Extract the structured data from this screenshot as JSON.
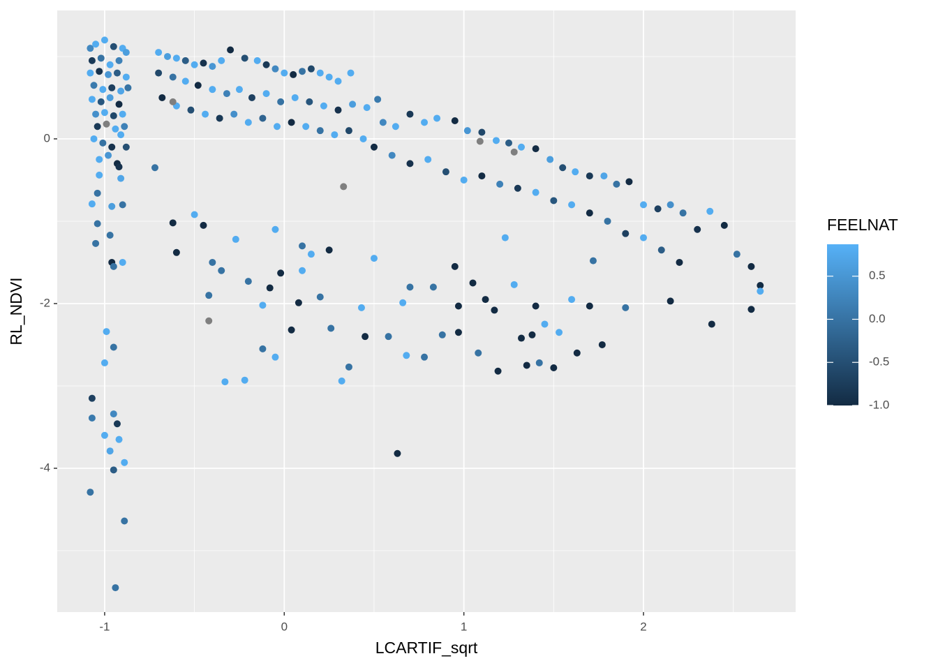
{
  "chart_data": {
    "type": "scatter",
    "x_label": "LCARTIF_sqrt",
    "y_label": "RL_NDVI",
    "xlim": [
      -1.264,
      2.847
    ],
    "ylim": [
      -5.746,
      1.559
    ],
    "xticks": [
      -1,
      0,
      1,
      2
    ],
    "yticks": [
      -4,
      -2,
      0
    ],
    "grid": true,
    "background": "#ebebeb",
    "na_color": "#7f7f7f",
    "colorbar": {
      "title": "FEELNAT",
      "lim": [
        -1,
        0.87
      ],
      "low": "#132b43",
      "high": "#56b1f7",
      "ticks": [
        {
          "value": -1,
          "label": "-1.0"
        },
        {
          "value": -0.5,
          "label": "-0.5"
        },
        {
          "value": 0,
          "label": "0.0"
        },
        {
          "value": 0.5,
          "label": "0.5"
        }
      ]
    },
    "x": [
      -1.08,
      -1.05,
      -1.0,
      -0.95,
      -0.9,
      -0.88,
      -1.07,
      -1.02,
      -0.97,
      -0.92,
      -1.08,
      -1.03,
      -0.98,
      -0.93,
      -0.88,
      -1.06,
      -1.01,
      -0.96,
      -0.91,
      -0.87,
      -1.07,
      -1.02,
      -0.97,
      -0.92,
      -1.05,
      -1.0,
      -0.95,
      -0.9,
      -1.04,
      -0.99,
      -0.94,
      -0.89,
      -1.06,
      -1.01,
      -0.96,
      -0.91,
      -0.88,
      -1.03,
      -0.98,
      -0.93,
      -1.07,
      -1.07,
      -1.08,
      -0.94,
      -0.89,
      -0.89,
      -0.95,
      -0.97,
      -1.0,
      -0.92,
      -0.93,
      -0.95,
      -0.99,
      -1.0,
      -0.95,
      -0.96,
      -0.95,
      -0.9,
      -1.05,
      -0.97,
      -1.04,
      -0.96,
      -0.9,
      -1.07,
      -1.04,
      -1.03,
      -0.91,
      -0.92,
      -0.7,
      -0.65,
      -0.6,
      -0.55,
      -0.5,
      -0.45,
      -0.4,
      -0.35,
      -0.3,
      -0.22,
      -0.15,
      -0.1,
      -0.05,
      0.0,
      0.05,
      0.1,
      0.15,
      0.2,
      0.25,
      0.3,
      0.37,
      -0.7,
      -0.62,
      -0.55,
      -0.48,
      -0.4,
      -0.32,
      -0.25,
      -0.18,
      -0.1,
      -0.02,
      0.06,
      0.14,
      0.22,
      0.3,
      0.38,
      0.46,
      0.52,
      -0.68,
      -0.6,
      -0.52,
      -0.44,
      -0.36,
      -0.28,
      -0.2,
      -0.12,
      -0.04,
      0.04,
      0.12,
      0.2,
      0.28,
      0.36,
      0.44,
      0.55,
      0.62,
      0.7,
      0.78,
      0.85,
      0.95,
      1.02,
      1.1,
      1.18,
      1.25,
      1.32,
      1.4,
      1.48,
      1.55,
      1.62,
      1.7,
      1.78,
      1.85,
      1.92,
      2.0,
      2.08,
      2.15,
      2.22,
      2.3,
      2.37,
      2.45,
      2.52,
      2.6,
      2.65,
      2.65,
      2.6,
      2.38,
      0.5,
      0.6,
      0.7,
      0.8,
      0.9,
      1.0,
      1.1,
      1.2,
      1.3,
      1.4,
      1.5,
      1.6,
      1.7,
      1.8,
      1.9,
      2.0,
      2.1,
      2.2,
      1.09,
      -0.62,
      0.33,
      -0.42,
      1.28,
      -0.72,
      -0.6,
      -0.62,
      -0.5,
      -0.45,
      -0.4,
      -0.35,
      -0.42,
      -0.33,
      -0.22,
      -0.27,
      -0.2,
      -0.12,
      -0.12,
      -0.05,
      -0.08,
      -0.02,
      0.08,
      0.04,
      0.1,
      0.15,
      0.2,
      0.26,
      0.32,
      0.36,
      0.43,
      0.45,
      0.5,
      0.58,
      0.63,
      0.66,
      0.68,
      0.7,
      0.78,
      0.83,
      0.88,
      0.95,
      0.97,
      0.97,
      1.05,
      1.08,
      1.12,
      1.17,
      1.19,
      1.23,
      1.28,
      1.32,
      1.35,
      1.4,
      1.42,
      1.45,
      1.5,
      1.53,
      1.6,
      1.63,
      1.7,
      1.77,
      1.9,
      1.72,
      2.15,
      1.38,
      -0.05,
      0.1,
      0.25
    ],
    "y": [
      1.1,
      1.15,
      1.2,
      1.12,
      1.1,
      1.05,
      0.95,
      0.98,
      0.9,
      0.95,
      0.8,
      0.82,
      0.78,
      0.8,
      0.75,
      0.65,
      0.6,
      0.62,
      0.58,
      0.62,
      0.48,
      0.45,
      0.5,
      0.42,
      0.3,
      0.32,
      0.28,
      0.3,
      0.15,
      0.18,
      0.12,
      0.15,
      0.0,
      -0.05,
      -0.1,
      0.05,
      -0.1,
      -0.25,
      -0.2,
      -0.3,
      -3.15,
      -3.39,
      -4.29,
      -5.45,
      -4.64,
      -3.93,
      -4.02,
      -3.79,
      -3.6,
      -3.65,
      -3.46,
      -3.34,
      -2.34,
      -2.72,
      -2.53,
      -1.5,
      -1.55,
      -1.5,
      -1.27,
      -1.17,
      -1.03,
      -0.82,
      -0.8,
      -0.79,
      -0.66,
      -0.44,
      -0.48,
      -0.34,
      1.05,
      1.0,
      0.98,
      0.95,
      0.9,
      0.92,
      0.88,
      0.95,
      1.08,
      0.98,
      0.95,
      0.9,
      0.85,
      0.8,
      0.78,
      0.82,
      0.85,
      0.8,
      0.75,
      0.7,
      0.8,
      0.8,
      0.75,
      0.7,
      0.65,
      0.6,
      0.55,
      0.6,
      0.5,
      0.55,
      0.45,
      0.5,
      0.45,
      0.4,
      0.35,
      0.42,
      0.38,
      0.48,
      0.5,
      0.4,
      0.35,
      0.3,
      0.25,
      0.3,
      0.2,
      0.25,
      0.15,
      0.2,
      0.15,
      0.1,
      0.05,
      0.1,
      0.0,
      0.2,
      0.15,
      0.3,
      0.2,
      0.25,
      0.22,
      0.1,
      0.08,
      -0.02,
      -0.05,
      -0.1,
      -0.12,
      -0.25,
      -0.35,
      -0.4,
      -0.45,
      -0.45,
      -0.55,
      -0.52,
      -0.8,
      -0.85,
      -0.8,
      -0.9,
      -1.1,
      -0.88,
      -1.05,
      -1.4,
      -1.55,
      -1.78,
      -1.85,
      -2.07,
      -2.25,
      -0.1,
      -0.2,
      -0.3,
      -0.25,
      -0.4,
      -0.5,
      -0.45,
      -0.55,
      -0.6,
      -0.65,
      -0.75,
      -0.8,
      -0.9,
      -1.0,
      -1.15,
      -1.2,
      -1.35,
      -1.5,
      -0.03,
      0.45,
      -0.58,
      -2.21,
      -0.16,
      -0.35,
      -1.38,
      -1.02,
      -0.92,
      -1.05,
      -1.5,
      -1.6,
      -1.9,
      -2.95,
      -2.93,
      -1.22,
      -1.73,
      -2.02,
      -2.55,
      -2.65,
      -1.81,
      -1.63,
      -1.99,
      -2.32,
      -1.6,
      -1.4,
      -1.92,
      -2.3,
      -2.94,
      -2.77,
      -2.05,
      -2.4,
      -1.45,
      -2.4,
      -3.82,
      -1.99,
      -2.63,
      -1.8,
      -2.65,
      -1.8,
      -2.38,
      -1.55,
      -2.03,
      -2.35,
      -1.75,
      -2.6,
      -1.95,
      -2.08,
      -2.82,
      -1.2,
      -1.77,
      -2.42,
      -2.75,
      -2.03,
      -2.72,
      -2.25,
      -2.78,
      -2.35,
      -1.95,
      -2.6,
      -2.03,
      -2.5,
      -2.05,
      -1.48,
      -1.97,
      -2.38,
      -1.1,
      -1.3,
      -1.35
    ],
    "feelnat": [
      0.3,
      0.8,
      0.8,
      -0.5,
      0.8,
      0.6,
      -0.8,
      0.0,
      0.8,
      0.2,
      0.8,
      -0.9,
      0.5,
      -0.3,
      0.8,
      0.1,
      0.8,
      -0.7,
      0.7,
      0.0,
      0.8,
      -0.4,
      0.6,
      -1.0,
      0.4,
      0.8,
      -0.6,
      0.8,
      -0.8,
      null,
      0.8,
      0.2,
      0.8,
      0.0,
      -0.9,
      0.8,
      -0.5,
      0.8,
      0.5,
      -1.0,
      -0.7,
      0.1,
      0.0,
      0.0,
      0.0,
      0.8,
      -0.3,
      0.7,
      0.8,
      0.8,
      -0.8,
      0.3,
      0.8,
      0.8,
      0.0,
      -1.0,
      0.0,
      0.8,
      0.0,
      0.0,
      0.0,
      0.6,
      0.0,
      0.8,
      0.0,
      0.8,
      0.7,
      -0.9,
      0.8,
      0.6,
      0.8,
      -0.3,
      0.8,
      -0.9,
      0.5,
      0.8,
      -1.0,
      -0.5,
      0.8,
      -0.8,
      0.3,
      0.8,
      -1.0,
      0.0,
      -0.6,
      0.8,
      0.8,
      0.8,
      0.8,
      -0.6,
      0.0,
      0.8,
      -1.0,
      0.8,
      0.2,
      0.8,
      -0.7,
      0.8,
      0.0,
      0.8,
      -0.4,
      0.8,
      -0.9,
      0.6,
      0.8,
      0.1,
      -1.0,
      0.8,
      -0.5,
      0.8,
      -0.8,
      0.4,
      0.8,
      -0.2,
      0.8,
      -1.0,
      0.8,
      0.0,
      0.8,
      -0.6,
      0.8,
      0.3,
      0.8,
      -0.8,
      0.8,
      0.8,
      -1.0,
      0.5,
      -0.6,
      0.8,
      -0.3,
      0.8,
      -1.0,
      0.6,
      -0.5,
      0.8,
      -0.8,
      0.7,
      0.0,
      -1.0,
      0.8,
      -0.7,
      0.4,
      0.0,
      -0.9,
      0.8,
      -1.0,
      0.0,
      -1.0,
      -1.0,
      0.8,
      -1.0,
      -1.0,
      -1.0,
      0.3,
      -0.9,
      0.8,
      -0.5,
      0.8,
      -1.0,
      0.2,
      -0.8,
      0.8,
      -0.4,
      0.8,
      -1.0,
      0.0,
      -0.7,
      0.8,
      -0.3,
      -1.0,
      null,
      null,
      null,
      null,
      null,
      0.0,
      -1.0,
      -1.0,
      0.8,
      -1.0,
      0.0,
      0.0,
      0.0,
      0.8,
      0.8,
      0.8,
      0.0,
      0.8,
      0.0,
      0.8,
      -1.0,
      -1.0,
      -1.0,
      -1.0,
      0.8,
      0.8,
      0.0,
      0.0,
      0.8,
      0.0,
      0.8,
      -1.0,
      0.8,
      0.0,
      -1.0,
      0.8,
      0.8,
      0.0,
      0.0,
      0.0,
      0.0,
      -1.0,
      -1.0,
      -1.0,
      -1.0,
      0.0,
      -1.0,
      -1.0,
      -1.0,
      0.8,
      0.8,
      -1.0,
      -1.0,
      -1.0,
      0.0,
      0.8,
      -1.0,
      0.8,
      0.8,
      -1.0,
      -1.0,
      -1.0,
      0.0,
      0.0,
      -1.0,
      -1.0,
      0.8,
      0.0,
      -1.0
    ]
  }
}
